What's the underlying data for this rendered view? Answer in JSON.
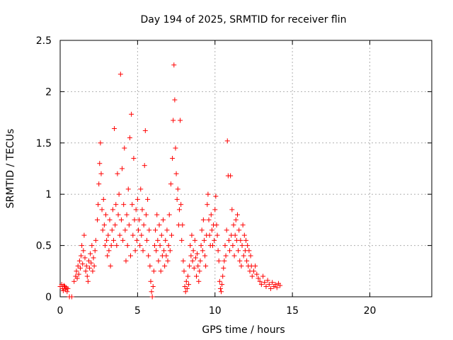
{
  "chart_data": {
    "type": "scatter",
    "title": "Day 194 of 2025, SRMTID for receiver flin",
    "xlabel": "GPS time / hours",
    "ylabel": "SRMTID / TECUs",
    "xlim": [
      0,
      24
    ],
    "ylim": [
      0,
      2.5
    ],
    "xticks": [
      0,
      5,
      10,
      15,
      20
    ],
    "yticks": [
      0,
      0.5,
      1,
      1.5,
      2,
      2.5
    ],
    "xtick_labels": [
      "0",
      "5",
      "10",
      "15",
      "20"
    ],
    "ytick_labels": [
      "0",
      "0.5",
      "1",
      "1.5",
      "2",
      "2.5"
    ],
    "grid": true,
    "marker": "+",
    "series_color": "#ff0000",
    "series": [
      {
        "name": "SRMTID",
        "points": [
          [
            0.0,
            0.1
          ],
          [
            0.1,
            0.12
          ],
          [
            0.15,
            0.08
          ],
          [
            0.2,
            0.06
          ],
          [
            0.25,
            0.11
          ],
          [
            0.3,
            0.1
          ],
          [
            0.35,
            0.07
          ],
          [
            0.4,
            0.09
          ],
          [
            0.45,
            0.05
          ],
          [
            0.5,
            0.08
          ],
          [
            0.6,
            0.0
          ],
          [
            0.75,
            0.0
          ],
          [
            0.9,
            0.15
          ],
          [
            1.0,
            0.2
          ],
          [
            1.05,
            0.25
          ],
          [
            1.1,
            0.18
          ],
          [
            1.15,
            0.3
          ],
          [
            1.2,
            0.22
          ],
          [
            1.25,
            0.35
          ],
          [
            1.3,
            0.28
          ],
          [
            1.35,
            0.4
          ],
          [
            1.4,
            0.5
          ],
          [
            1.45,
            0.32
          ],
          [
            1.5,
            0.45
          ],
          [
            1.55,
            0.6
          ],
          [
            1.6,
            0.38
          ],
          [
            1.65,
            0.25
          ],
          [
            1.7,
            0.3
          ],
          [
            1.75,
            0.2
          ],
          [
            1.8,
            0.15
          ],
          [
            1.85,
            0.35
          ],
          [
            1.9,
            0.28
          ],
          [
            1.95,
            0.42
          ],
          [
            2.0,
            0.33
          ],
          [
            2.05,
            0.5
          ],
          [
            2.1,
            0.25
          ],
          [
            2.15,
            0.38
          ],
          [
            2.2,
            0.3
          ],
          [
            2.25,
            0.45
          ],
          [
            2.3,
            0.55
          ],
          [
            2.4,
            0.75
          ],
          [
            2.45,
            0.9
          ],
          [
            2.5,
            1.1
          ],
          [
            2.55,
            1.3
          ],
          [
            2.6,
            1.5
          ],
          [
            2.65,
            1.2
          ],
          [
            2.7,
            0.85
          ],
          [
            2.75,
            0.65
          ],
          [
            2.8,
            0.95
          ],
          [
            2.85,
            0.7
          ],
          [
            2.9,
            0.5
          ],
          [
            2.95,
            0.8
          ],
          [
            3.0,
            0.55
          ],
          [
            3.05,
            0.4
          ],
          [
            3.1,
            0.6
          ],
          [
            3.15,
            0.45
          ],
          [
            3.2,
            0.75
          ],
          [
            3.25,
            0.3
          ],
          [
            3.3,
            0.5
          ],
          [
            3.35,
            0.65
          ],
          [
            3.4,
            0.85
          ],
          [
            3.45,
            0.55
          ],
          [
            3.5,
            1.64
          ],
          [
            3.55,
            0.7
          ],
          [
            3.6,
            0.9
          ],
          [
            3.65,
            0.5
          ],
          [
            3.7,
            1.2
          ],
          [
            3.75,
            0.8
          ],
          [
            3.8,
            1.0
          ],
          [
            3.85,
            0.6
          ],
          [
            3.9,
            2.17
          ],
          [
            3.95,
            0.75
          ],
          [
            4.0,
            1.25
          ],
          [
            4.05,
            0.55
          ],
          [
            4.1,
            0.9
          ],
          [
            4.15,
            1.45
          ],
          [
            4.2,
            0.65
          ],
          [
            4.25,
            0.35
          ],
          [
            4.3,
            0.8
          ],
          [
            4.35,
            0.5
          ],
          [
            4.4,
            1.05
          ],
          [
            4.45,
            0.7
          ],
          [
            4.5,
            1.55
          ],
          [
            4.55,
            0.4
          ],
          [
            4.6,
            1.78
          ],
          [
            4.65,
            0.9
          ],
          [
            4.7,
            0.6
          ],
          [
            4.75,
            1.35
          ],
          [
            4.8,
            0.75
          ],
          [
            4.85,
            0.45
          ],
          [
            4.9,
            0.85
          ],
          [
            4.95,
            0.55
          ],
          [
            5.0,
            0.95
          ],
          [
            5.05,
            0.65
          ],
          [
            5.1,
            0.75
          ],
          [
            5.15,
            0.5
          ],
          [
            5.2,
            1.05
          ],
          [
            5.25,
            0.6
          ],
          [
            5.3,
            0.85
          ],
          [
            5.35,
            0.45
          ],
          [
            5.4,
            0.7
          ],
          [
            5.45,
            1.28
          ],
          [
            5.5,
            1.62
          ],
          [
            5.55,
            0.8
          ],
          [
            5.6,
            0.55
          ],
          [
            5.65,
            0.95
          ],
          [
            5.7,
            0.4
          ],
          [
            5.75,
            0.65
          ],
          [
            5.8,
            0.3
          ],
          [
            5.85,
            0.15
          ],
          [
            5.9,
            0.05
          ],
          [
            5.95,
            0.0
          ],
          [
            6.0,
            0.1
          ],
          [
            6.05,
            0.25
          ],
          [
            6.1,
            0.5
          ],
          [
            6.15,
            0.65
          ],
          [
            6.2,
            0.45
          ],
          [
            6.25,
            0.8
          ],
          [
            6.3,
            0.55
          ],
          [
            6.35,
            0.35
          ],
          [
            6.4,
            0.7
          ],
          [
            6.45,
            0.5
          ],
          [
            6.5,
            0.25
          ],
          [
            6.55,
            0.6
          ],
          [
            6.6,
            0.4
          ],
          [
            6.65,
            0.75
          ],
          [
            6.7,
            0.45
          ],
          [
            6.75,
            0.3
          ],
          [
            6.8,
            0.55
          ],
          [
            6.85,
            0.4
          ],
          [
            6.9,
            0.65
          ],
          [
            6.95,
            0.35
          ],
          [
            7.0,
            0.5
          ],
          [
            7.05,
            0.8
          ],
          [
            7.1,
            0.45
          ],
          [
            7.15,
            1.1
          ],
          [
            7.2,
            0.6
          ],
          [
            7.25,
            1.35
          ],
          [
            7.3,
            1.72
          ],
          [
            7.35,
            2.26
          ],
          [
            7.4,
            1.92
          ],
          [
            7.45,
            1.45
          ],
          [
            7.5,
            1.2
          ],
          [
            7.55,
            0.95
          ],
          [
            7.6,
            1.05
          ],
          [
            7.65,
            0.7
          ],
          [
            7.7,
            0.85
          ],
          [
            7.75,
            1.72
          ],
          [
            7.8,
            0.9
          ],
          [
            7.85,
            0.55
          ],
          [
            7.9,
            0.7
          ],
          [
            7.95,
            0.35
          ],
          [
            8.0,
            0.25
          ],
          [
            8.05,
            0.1
          ],
          [
            8.1,
            0.05
          ],
          [
            8.15,
            0.15
          ],
          [
            8.2,
            0.08
          ],
          [
            8.25,
            0.2
          ],
          [
            8.3,
            0.12
          ],
          [
            8.35,
            0.3
          ],
          [
            8.4,
            0.5
          ],
          [
            8.45,
            0.4
          ],
          [
            8.5,
            0.6
          ],
          [
            8.55,
            0.35
          ],
          [
            8.6,
            0.45
          ],
          [
            8.65,
            0.28
          ],
          [
            8.7,
            0.55
          ],
          [
            8.75,
            0.38
          ],
          [
            8.8,
            0.2
          ],
          [
            8.85,
            0.42
          ],
          [
            8.9,
            0.3
          ],
          [
            8.95,
            0.15
          ],
          [
            9.0,
            0.25
          ],
          [
            9.05,
            0.35
          ],
          [
            9.1,
            0.5
          ],
          [
            9.15,
            0.65
          ],
          [
            9.2,
            0.45
          ],
          [
            9.25,
            0.75
          ],
          [
            9.3,
            0.55
          ],
          [
            9.35,
            0.4
          ],
          [
            9.4,
            0.3
          ],
          [
            9.45,
            0.6
          ],
          [
            9.5,
            0.9
          ],
          [
            9.55,
            1.0
          ],
          [
            9.6,
            0.75
          ],
          [
            9.65,
            0.6
          ],
          [
            9.7,
            0.5
          ],
          [
            9.75,
            0.8
          ],
          [
            9.8,
            0.65
          ],
          [
            9.85,
            0.5
          ],
          [
            9.9,
            0.7
          ],
          [
            9.95,
            0.55
          ],
          [
            10.0,
            0.85
          ],
          [
            10.05,
            0.98
          ],
          [
            10.1,
            0.7
          ],
          [
            10.15,
            0.6
          ],
          [
            10.2,
            0.45
          ],
          [
            10.25,
            0.35
          ],
          [
            10.3,
            0.15
          ],
          [
            10.35,
            0.08
          ],
          [
            10.4,
            0.05
          ],
          [
            10.45,
            0.12
          ],
          [
            10.5,
            0.2
          ],
          [
            10.55,
            0.28
          ],
          [
            10.6,
            0.35
          ],
          [
            10.65,
            0.5
          ],
          [
            10.7,
            0.4
          ],
          [
            10.75,
            0.65
          ],
          [
            10.8,
            1.52
          ],
          [
            10.85,
            1.18
          ],
          [
            10.9,
            0.55
          ],
          [
            10.95,
            0.45
          ],
          [
            11.0,
            1.18
          ],
          [
            11.05,
            0.6
          ],
          [
            11.1,
            0.85
          ],
          [
            11.15,
            0.5
          ],
          [
            11.2,
            0.7
          ],
          [
            11.25,
            0.4
          ],
          [
            11.3,
            0.6
          ],
          [
            11.35,
            0.75
          ],
          [
            11.4,
            0.55
          ],
          [
            11.45,
            0.8
          ],
          [
            11.5,
            0.45
          ],
          [
            11.55,
            0.65
          ],
          [
            11.6,
            0.35
          ],
          [
            11.65,
            0.55
          ],
          [
            11.7,
            0.3
          ],
          [
            11.75,
            0.5
          ],
          [
            11.8,
            0.7
          ],
          [
            11.85,
            0.4
          ],
          [
            11.9,
            0.6
          ],
          [
            11.95,
            0.45
          ],
          [
            12.0,
            0.55
          ],
          [
            12.05,
            0.35
          ],
          [
            12.1,
            0.5
          ],
          [
            12.15,
            0.3
          ],
          [
            12.2,
            0.45
          ],
          [
            12.25,
            0.25
          ],
          [
            12.3,
            0.4
          ],
          [
            12.35,
            0.3
          ],
          [
            12.4,
            0.2
          ],
          [
            12.5,
            0.25
          ],
          [
            12.6,
            0.3
          ],
          [
            12.7,
            0.22
          ],
          [
            12.8,
            0.18
          ],
          [
            12.9,
            0.15
          ],
          [
            13.0,
            0.12
          ],
          [
            13.1,
            0.2
          ],
          [
            13.2,
            0.14
          ],
          [
            13.3,
            0.1
          ],
          [
            13.4,
            0.16
          ],
          [
            13.5,
            0.12
          ],
          [
            13.6,
            0.08
          ],
          [
            13.7,
            0.14
          ],
          [
            13.8,
            0.1
          ],
          [
            13.9,
            0.12
          ],
          [
            14.0,
            0.09
          ],
          [
            14.1,
            0.13
          ],
          [
            14.2,
            0.11
          ]
        ]
      }
    ]
  }
}
